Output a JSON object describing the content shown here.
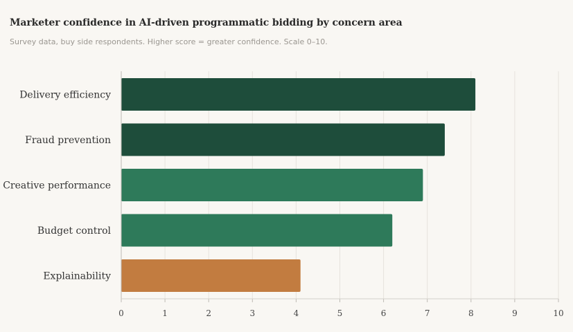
{
  "chart_data": {
    "type": "bar",
    "orientation": "horizontal",
    "title": "Marketer confidence in AI-driven programmatic bidding by concern area",
    "subtitle": "Survey data, buy side respondents. Higher score = greater confidence. Scale 0–10.",
    "categories": [
      "Delivery efficiency",
      "Fraud prevention",
      "Creative performance",
      "Budget control",
      "Explainability"
    ],
    "values": [
      8.1,
      7.4,
      6.9,
      6.2,
      4.1
    ],
    "bar_colors": [
      "#1e4d3b",
      "#1e4d3b",
      "#2e7a5a",
      "#2e7a5a",
      "#c27c40"
    ],
    "xlim": [
      0,
      10
    ],
    "xticks": [
      "0",
      "1",
      "2",
      "3",
      "4",
      "5",
      "6",
      "7",
      "8",
      "9",
      "10"
    ],
    "xlabel": "",
    "ylabel": "",
    "grid": "vertical",
    "legend": "none"
  }
}
